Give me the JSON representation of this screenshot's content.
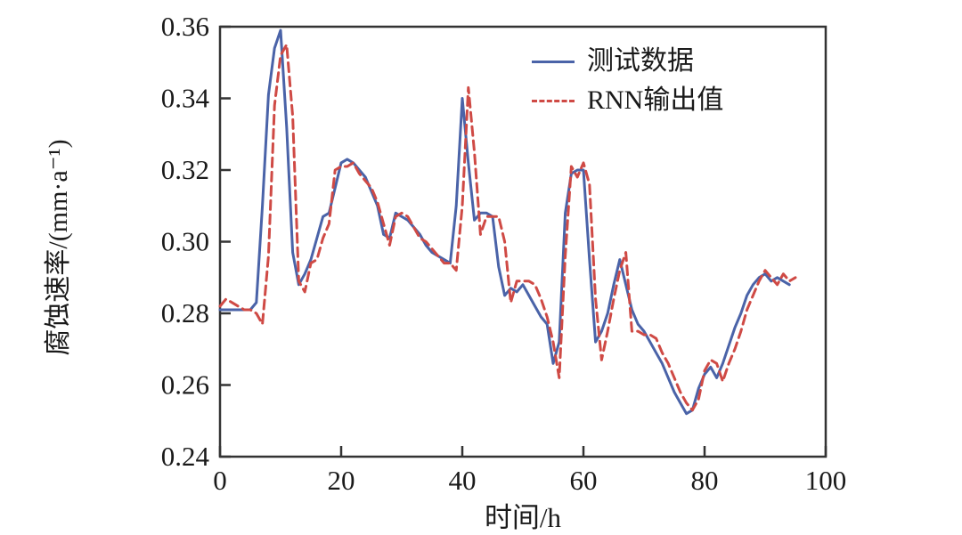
{
  "chart_data": {
    "type": "line",
    "title": "",
    "xlabel": "时间/h",
    "ylabel": "腐蚀速率/(mm·a⁻¹)",
    "xlim": [
      0,
      100
    ],
    "ylim": [
      0.24,
      0.36
    ],
    "xticks": [
      0,
      20,
      40,
      60,
      80,
      100
    ],
    "yticks": [
      0.24,
      0.26,
      0.28,
      0.3,
      0.32,
      0.34,
      0.36
    ],
    "grid": false,
    "legend_position": "upper right, no frame",
    "axis_color": "#333333",
    "x_unit": "h",
    "x_start": 0,
    "x_step": 1,
    "series": [
      {
        "name": "测试数据",
        "color": "#4a63a8",
        "style": "solid",
        "y": [
          0.281,
          0.281,
          0.281,
          0.281,
          0.281,
          0.281,
          0.283,
          0.31,
          0.341,
          0.354,
          0.359,
          0.332,
          0.297,
          0.288,
          0.291,
          0.295,
          0.301,
          0.307,
          0.308,
          0.315,
          0.322,
          0.323,
          0.322,
          0.32,
          0.318,
          0.314,
          0.31,
          0.302,
          0.301,
          0.308,
          0.307,
          0.306,
          0.304,
          0.302,
          0.299,
          0.297,
          0.296,
          0.295,
          0.294,
          0.31,
          0.34,
          0.322,
          0.306,
          0.308,
          0.308,
          0.307,
          0.293,
          0.285,
          0.287,
          0.286,
          0.288,
          0.285,
          0.282,
          0.279,
          0.277,
          0.266,
          0.272,
          0.308,
          0.319,
          0.32,
          0.32,
          0.295,
          0.272,
          0.275,
          0.28,
          0.288,
          0.295,
          0.288,
          0.281,
          0.277,
          0.275,
          0.272,
          0.269,
          0.266,
          0.262,
          0.258,
          0.255,
          0.252,
          0.253,
          0.259,
          0.263,
          0.265,
          0.262,
          0.266,
          0.271,
          0.276,
          0.28,
          0.285,
          0.288,
          0.29,
          0.291,
          0.289,
          0.29,
          0.289,
          0.288
        ]
      },
      {
        "name": "RNN输出值",
        "color": "#cf4a45",
        "style": "dashed",
        "y": [
          0.282,
          0.284,
          0.283,
          0.282,
          0.281,
          0.281,
          0.28,
          0.277,
          0.296,
          0.338,
          0.352,
          0.355,
          0.335,
          0.289,
          0.286,
          0.294,
          0.295,
          0.301,
          0.305,
          0.32,
          0.321,
          0.321,
          0.322,
          0.319,
          0.317,
          0.315,
          0.311,
          0.305,
          0.299,
          0.307,
          0.308,
          0.307,
          0.304,
          0.301,
          0.3,
          0.298,
          0.296,
          0.294,
          0.294,
          0.292,
          0.31,
          0.343,
          0.325,
          0.302,
          0.307,
          0.307,
          0.307,
          0.3,
          0.283,
          0.289,
          0.289,
          0.289,
          0.288,
          0.284,
          0.279,
          0.272,
          0.262,
          0.296,
          0.321,
          0.318,
          0.322,
          0.316,
          0.284,
          0.267,
          0.275,
          0.284,
          0.292,
          0.297,
          0.275,
          0.275,
          0.274,
          0.274,
          0.273,
          0.269,
          0.266,
          0.262,
          0.258,
          0.255,
          0.253,
          0.256,
          0.264,
          0.267,
          0.266,
          0.261,
          0.266,
          0.27,
          0.275,
          0.281,
          0.285,
          0.289,
          0.292,
          0.29,
          0.288,
          0.291,
          0.289,
          0.29
        ]
      }
    ]
  }
}
